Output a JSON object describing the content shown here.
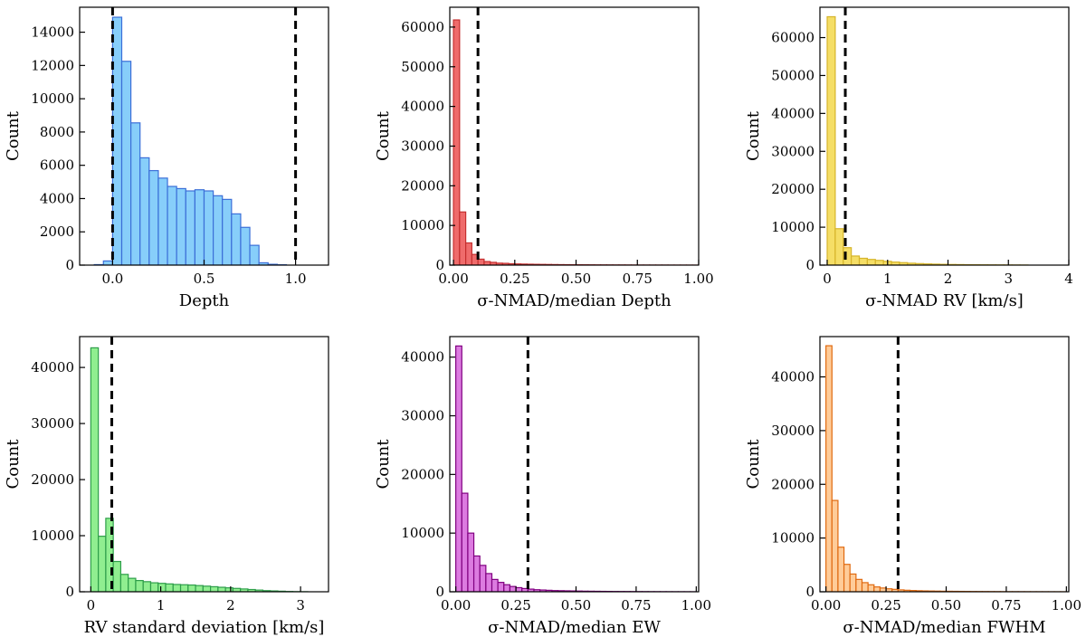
{
  "chart_data": [
    {
      "type": "bar",
      "title": "",
      "xlabel": "Depth",
      "ylabel": "Count",
      "xlim": [
        -0.18,
        1.18
      ],
      "ylim": [
        0,
        15500
      ],
      "xticks": [
        0.0,
        0.5,
        1.0
      ],
      "xtick_labels": [
        "0.0",
        "0.5",
        "1.0"
      ],
      "yticks": [
        0,
        2000,
        4000,
        6000,
        8000,
        10000,
        12000,
        14000
      ],
      "ytick_labels": [
        "0",
        "2000",
        "4000",
        "6000",
        "8000",
        "10000",
        "12000",
        "14000"
      ],
      "bins": {
        "start": -0.1,
        "width": 0.05,
        "values": [
          30,
          250,
          14900,
          12250,
          8550,
          6450,
          5680,
          5230,
          4730,
          4600,
          4460,
          4530,
          4460,
          4170,
          3950,
          3080,
          2270,
          1190,
          140,
          50,
          20
        ]
      },
      "vlines": [
        0.0,
        1.0
      ],
      "fill_color": "#87cefa",
      "edge_color": "#3b6fd8"
    },
    {
      "type": "bar",
      "title": "",
      "xlabel": "σ-NMAD/median Depth",
      "ylabel": "Count",
      "xlim": [
        -0.015,
        1.0
      ],
      "ylim": [
        0,
        65000
      ],
      "xticks": [
        0.0,
        0.25,
        0.5,
        0.75,
        1.0
      ],
      "xtick_labels": [
        "0.00",
        "0.25",
        "0.50",
        "0.75",
        "1.00"
      ],
      "yticks": [
        0,
        10000,
        20000,
        30000,
        40000,
        50000,
        60000
      ],
      "ytick_labels": [
        "0",
        "10000",
        "20000",
        "30000",
        "40000",
        "50000",
        "60000"
      ],
      "bins": {
        "start": 0.0,
        "width": 0.025,
        "values": [
          61800,
          13400,
          5600,
          2700,
          1500,
          900,
          700,
          500,
          450,
          350,
          300,
          260,
          230,
          200,
          180,
          160,
          140,
          120,
          110,
          100,
          90,
          80,
          70,
          60,
          55,
          50,
          45,
          40,
          35,
          30,
          25,
          22,
          20,
          18,
          15,
          12,
          10,
          8,
          6,
          5
        ]
      },
      "vlines": [
        0.1
      ],
      "fill_color": "#ef6b6b",
      "edge_color": "#c52f2f"
    },
    {
      "type": "bar",
      "title": "",
      "xlabel": "σ-NMAD RV [km/s]",
      "ylabel": "Count",
      "xlim": [
        -0.12,
        4.0
      ],
      "ylim": [
        0,
        68000
      ],
      "xticks": [
        0,
        1,
        2,
        3,
        4
      ],
      "xtick_labels": [
        "0",
        "1",
        "2",
        "3",
        "4"
      ],
      "yticks": [
        0,
        10000,
        20000,
        30000,
        40000,
        50000,
        60000
      ],
      "ytick_labels": [
        "0",
        "10000",
        "20000",
        "30000",
        "40000",
        "50000",
        "60000"
      ],
      "bins": {
        "start": 0.0,
        "width": 0.133,
        "values": [
          65500,
          9600,
          4600,
          2400,
          1800,
          1500,
          1250,
          1000,
          800,
          650,
          500,
          400,
          320,
          260,
          210,
          170,
          140,
          110,
          90,
          75,
          60,
          50,
          40,
          30,
          20
        ]
      },
      "vlines": [
        0.3
      ],
      "fill_color": "#f5de66",
      "edge_color": "#d6b52b"
    },
    {
      "type": "bar",
      "title": "",
      "xlabel": "RV standard deviation [km/s]",
      "ylabel": "Count",
      "xlim": [
        -0.16,
        3.4
      ],
      "ylim": [
        0,
        45500
      ],
      "xticks": [
        0,
        1,
        2,
        3
      ],
      "xtick_labels": [
        "0",
        "1",
        "2",
        "3"
      ],
      "yticks": [
        0,
        10000,
        20000,
        30000,
        40000
      ],
      "ytick_labels": [
        "0",
        "10000",
        "20000",
        "30000",
        "40000"
      ],
      "bins": {
        "start": 0.0,
        "width": 0.107,
        "values": [
          43500,
          9900,
          13100,
          5400,
          3100,
          2400,
          2000,
          1800,
          1600,
          1500,
          1400,
          1300,
          1250,
          1200,
          1100,
          1000,
          900,
          800,
          700,
          600,
          500,
          400,
          300,
          200,
          150,
          100,
          50,
          25,
          10
        ]
      },
      "vlines": [
        0.3
      ],
      "fill_color": "#90ee90",
      "edge_color": "#2e9e4a"
    },
    {
      "type": "bar",
      "title": "",
      "xlabel": "σ-NMAD/median EW",
      "ylabel": "Count",
      "xlim": [
        -0.025,
        1.01
      ],
      "ylim": [
        0,
        43500
      ],
      "xticks": [
        0.0,
        0.25,
        0.5,
        0.75,
        1.0
      ],
      "xtick_labels": [
        "0.00",
        "0.25",
        "0.50",
        "0.75",
        "1.00"
      ],
      "yticks": [
        0,
        10000,
        20000,
        30000,
        40000
      ],
      "ytick_labels": [
        "0",
        "10000",
        "20000",
        "30000",
        "40000"
      ],
      "bins": {
        "start": 0.0,
        "width": 0.025,
        "values": [
          41900,
          16800,
          10000,
          6100,
          4500,
          3100,
          2100,
          1600,
          1200,
          900,
          700,
          550,
          450,
          350,
          300,
          250,
          200,
          180,
          160,
          140,
          120,
          100,
          90,
          80,
          70,
          60,
          50,
          45,
          40,
          35,
          30,
          25,
          20,
          18,
          15,
          12,
          10,
          8,
          6,
          5
        ]
      },
      "vlines": [
        0.3
      ],
      "fill_color": "#dc7be0",
      "edge_color": "#800080"
    },
    {
      "type": "bar",
      "title": "",
      "xlabel": "σ-NMAD/median FWHM",
      "ylabel": "Count",
      "xlim": [
        -0.025,
        1.01
      ],
      "ylim": [
        0,
        47500
      ],
      "xticks": [
        0.0,
        0.25,
        0.5,
        0.75,
        1.0
      ],
      "xtick_labels": [
        "0.00",
        "0.25",
        "0.50",
        "0.75",
        "1.00"
      ],
      "yticks": [
        0,
        10000,
        20000,
        30000,
        40000
      ],
      "ytick_labels": [
        "0",
        "10000",
        "20000",
        "30000",
        "40000"
      ],
      "bins": {
        "start": 0.0,
        "width": 0.025,
        "values": [
          45800,
          17000,
          8300,
          5100,
          3300,
          2300,
          1700,
          1300,
          900,
          700,
          550,
          450,
          350,
          280,
          230,
          190,
          160,
          140,
          120,
          100,
          90,
          80,
          70,
          60,
          50,
          45,
          40,
          35,
          30,
          25,
          20,
          18,
          15,
          12,
          10,
          8,
          6,
          5,
          4,
          3
        ]
      },
      "vlines": [
        0.3
      ],
      "fill_color": "#ffcc99",
      "edge_color": "#e06a10"
    }
  ]
}
